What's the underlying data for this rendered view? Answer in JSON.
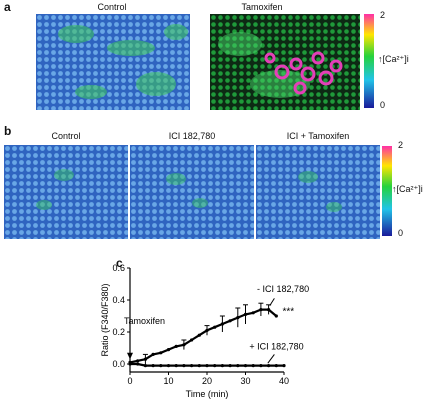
{
  "panels": {
    "a": {
      "letter": "a",
      "images": [
        {
          "title": "Control"
        },
        {
          "title": "Tamoxifen"
        }
      ],
      "colorbar": {
        "label": "↑[Ca²⁺]i",
        "max": "2",
        "min": "0"
      }
    },
    "b": {
      "letter": "b",
      "images": [
        {
          "title": "Control"
        },
        {
          "title": "ICI 182,780"
        },
        {
          "title": "ICI + Tamoxifen"
        }
      ],
      "colorbar": {
        "label": "↑[Ca²⁺]i",
        "max": "2",
        "min": "0"
      }
    },
    "c": {
      "letter": "c"
    }
  },
  "colors": {
    "cbar_top": "#ff2fa6",
    "cbar_mid_high": "#ffe600",
    "cbar_mid": "#26d23c",
    "cbar_low": "#22c4e8",
    "cbar_bottom": "#1a1a9a",
    "cell_blue": "#3f7fd6",
    "cell_green": "#36c84a",
    "cell_magenta": "#e040b8"
  },
  "chart_data": {
    "type": "line",
    "xlabel": "Time (min)",
    "ylabel": "Ratio (F340/F380)",
    "xlim": [
      0,
      40
    ],
    "ylim": [
      -0.05,
      0.6
    ],
    "xticks": [
      "0",
      "10",
      "20",
      "30",
      "40"
    ],
    "yticks": [
      "0.0",
      "0.2",
      "0.4",
      "0.6"
    ],
    "annotations": {
      "arrow_label": "Tamoxifen",
      "minus_label": "- ICI 182,780",
      "plus_label": "+ ICI 182,780",
      "significance": "***"
    },
    "series": [
      {
        "x": [
          0,
          2,
          4,
          6,
          8,
          10,
          12,
          14,
          16,
          18,
          20,
          22,
          24,
          26,
          28,
          30,
          32,
          34,
          36,
          38
        ],
        "values": [
          0.01,
          0.02,
          0.03,
          0.06,
          0.07,
          0.09,
          0.11,
          0.12,
          0.15,
          0.18,
          0.21,
          0.23,
          0.25,
          0.27,
          0.29,
          0.31,
          0.32,
          0.34,
          0.34,
          0.3
        ],
        "errors": [
          0,
          0,
          0.03,
          0,
          0,
          0,
          0,
          0.03,
          0,
          0,
          0.03,
          0,
          0.05,
          0,
          0.06,
          0.06,
          0,
          0.04,
          0.03,
          0
        ]
      },
      {
        "x": [
          0,
          2,
          4,
          6,
          8,
          10,
          12,
          14,
          16,
          18,
          20,
          22,
          24,
          26,
          28,
          30,
          32,
          34,
          36,
          38,
          40
        ],
        "values": [
          0.0,
          0.0,
          -0.01,
          -0.01,
          -0.01,
          -0.01,
          -0.01,
          -0.01,
          -0.01,
          -0.01,
          -0.01,
          -0.01,
          -0.01,
          -0.01,
          -0.01,
          -0.01,
          -0.01,
          -0.01,
          -0.01,
          -0.01,
          -0.01
        ]
      }
    ]
  }
}
